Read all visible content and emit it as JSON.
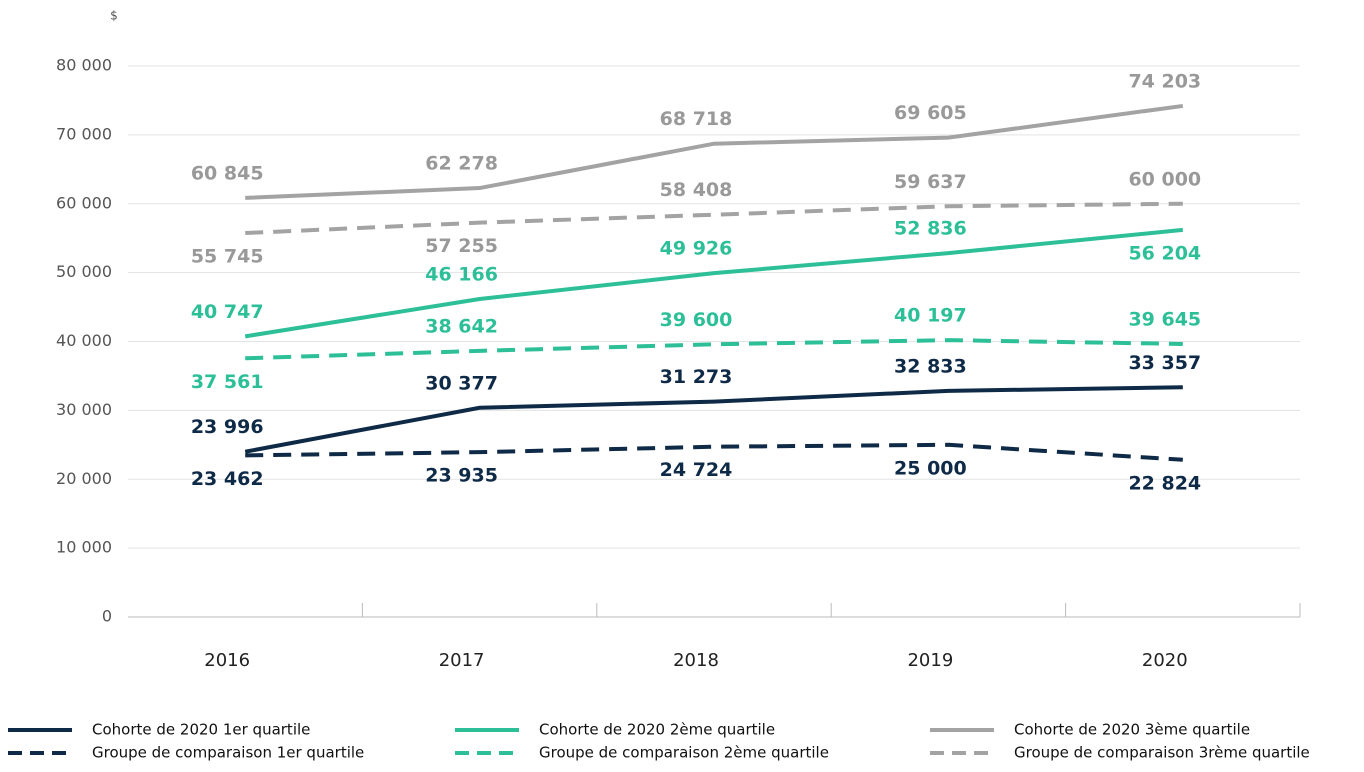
{
  "chart_data": {
    "type": "line",
    "y_unit": "$",
    "categories": [
      "2016",
      "2017",
      "2018",
      "2019",
      "2020"
    ],
    "ylim": [
      0,
      80000
    ],
    "yticks": [
      0,
      {
        "value": 10000,
        "label": "10 000"
      },
      {
        "value": 20000,
        "label": "20 000"
      },
      {
        "value": 30000,
        "label": "30 000"
      },
      {
        "value": 40000,
        "label": "40 000"
      },
      {
        "value": 50000,
        "label": "50 000"
      },
      {
        "value": 60000,
        "label": "60 000"
      },
      {
        "value": 70000,
        "label": "70 000"
      },
      {
        "value": 80000,
        "label": "80 000"
      }
    ],
    "grid": true,
    "legend": "bottom",
    "series": [
      {
        "name": "Cohorte de 2020 1er quartile",
        "color": "#0f2a47",
        "dashed": false,
        "values": [
          23996,
          30377,
          31273,
          32833,
          33357
        ],
        "value_labels": [
          "23 996",
          "30 377",
          "31 273",
          "32 833",
          "33 357"
        ]
      },
      {
        "name": "Groupe de comparaison 1er quartile",
        "color": "#0f2a47",
        "dashed": true,
        "values": [
          23462,
          23935,
          24724,
          25000,
          22824
        ],
        "value_labels": [
          "23 462",
          "23 935",
          "24 724",
          "25 000",
          "22 824"
        ]
      },
      {
        "name": "Cohorte de 2020 2ème quartile",
        "color": "#2dbf98",
        "dashed": false,
        "values": [
          40747,
          46166,
          49926,
          52836,
          56204
        ],
        "value_labels": [
          "40 747",
          "46 166",
          "49 926",
          "52 836",
          "56 204"
        ]
      },
      {
        "name": "Groupe de comparaison 2ème quartile",
        "color": "#2dbf98",
        "dashed": true,
        "values": [
          37561,
          38642,
          39600,
          40197,
          39645
        ],
        "value_labels": [
          "37 561",
          "38 642",
          "39 600",
          "40 197",
          "39 645"
        ]
      },
      {
        "name": "Cohorte de 2020 3ème quartile",
        "color": "#a3a3a3",
        "dashed": false,
        "values": [
          60845,
          62278,
          68718,
          69605,
          74203
        ],
        "value_labels": [
          "60 845",
          "62 278",
          "68 718",
          "69 605",
          "74 203"
        ]
      },
      {
        "name": "Groupe de comparaison 3rème quartile",
        "color": "#a3a3a3",
        "dashed": true,
        "values": [
          55745,
          57255,
          58408,
          59637,
          60000
        ],
        "value_labels": [
          "55 745",
          "57 255",
          "58 408",
          "59 637",
          "60 000"
        ]
      }
    ]
  }
}
